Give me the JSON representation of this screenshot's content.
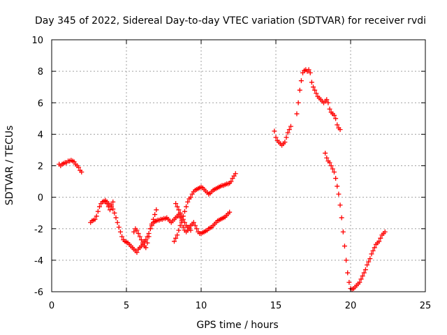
{
  "chart_data": {
    "type": "scatter",
    "title": "Day 345 of 2022, Sidereal Day-to-day VTEC variation (SDTVAR) for receiver rvdi",
    "xlabel": "GPS time / hours",
    "ylabel": "SDTVAR / TECUs",
    "xlim": [
      0,
      25
    ],
    "ylim": [
      -6,
      10
    ],
    "xticks": [
      0,
      5,
      10,
      15,
      20,
      25
    ],
    "yticks": [
      -6,
      -4,
      -2,
      0,
      2,
      4,
      6,
      8,
      10
    ],
    "grid": true,
    "marker": "plus",
    "color": "#ff0000",
    "series": [
      {
        "x": [
          0.5,
          0.6,
          0.7,
          0.8,
          0.9,
          1.0,
          1.1,
          1.2,
          1.3,
          1.4,
          1.5,
          1.6,
          1.7,
          1.8,
          1.9,
          2.0
        ],
        "y": [
          2.1,
          2.0,
          2.1,
          2.15,
          2.2,
          2.2,
          2.3,
          2.3,
          2.35,
          2.3,
          2.25,
          2.1,
          2.0,
          1.9,
          1.7,
          1.6
        ]
      },
      {
        "x": [
          2.6,
          2.7,
          2.8,
          2.9,
          3.0,
          3.1,
          3.2,
          3.3,
          3.4,
          3.5,
          3.6,
          3.7,
          3.8,
          3.9,
          4.0,
          4.1,
          4.2,
          4.3,
          4.4,
          4.5,
          4.6,
          4.7,
          4.8,
          4.9,
          5.0,
          5.1,
          5.2,
          5.3,
          5.4,
          5.5,
          5.6,
          5.7
        ],
        "y": [
          -1.6,
          -1.5,
          -1.45,
          -1.4,
          -1.2,
          -0.9,
          -0.6,
          -0.4,
          -0.3,
          -0.25,
          -0.2,
          -0.3,
          -0.4,
          -0.5,
          -0.6,
          -0.75,
          -1.0,
          -1.3,
          -1.6,
          -1.9,
          -2.2,
          -2.5,
          -2.7,
          -2.8,
          -2.85,
          -2.9,
          -3.0,
          -3.1,
          -3.2,
          -3.3,
          -3.4,
          -3.5
        ]
      },
      {
        "x": [
          3.6,
          3.7,
          3.8,
          3.9,
          4.0,
          4.1
        ],
        "y": [
          -0.3,
          -0.4,
          -0.6,
          -0.8,
          -0.5,
          -0.3
        ]
      },
      {
        "x": [
          5.5,
          5.6,
          5.7,
          5.8,
          5.9,
          6.0,
          6.1,
          6.2,
          6.3,
          6.4,
          6.5,
          6.6,
          6.7,
          6.8,
          6.9,
          7.0
        ],
        "y": [
          -2.2,
          -2.0,
          -2.1,
          -2.3,
          -2.5,
          -2.7,
          -2.9,
          -3.1,
          -3.2,
          -2.9,
          -2.5,
          -2.0,
          -1.7,
          -1.4,
          -1.1,
          -0.8
        ]
      },
      {
        "x": [
          5.8,
          5.9,
          6.0,
          6.1,
          6.2,
          6.3,
          6.4,
          6.5,
          6.6,
          6.7,
          6.8,
          6.9,
          7.0,
          7.1,
          7.2,
          7.3,
          7.4,
          7.5,
          7.6,
          7.7,
          7.8,
          7.9,
          8.0,
          8.1,
          8.2,
          8.3,
          8.4,
          8.5,
          8.6,
          8.7,
          8.8,
          8.9,
          9.0,
          9.1,
          9.2,
          9.3,
          9.4,
          9.5,
          9.6,
          9.7,
          9.8,
          9.9,
          10.0,
          10.1,
          10.2,
          10.3,
          10.4,
          10.5,
          10.6,
          10.7,
          10.8,
          10.9,
          11.0,
          11.1,
          11.2,
          11.3,
          11.4,
          11.5,
          11.6,
          11.7,
          11.8,
          11.9
        ],
        "y": [
          -3.3,
          -3.2,
          -3.1,
          -3.0,
          -2.8,
          -2.7,
          -2.5,
          -2.3,
          -2.0,
          -1.8,
          -1.6,
          -1.55,
          -1.5,
          -1.45,
          -1.45,
          -1.4,
          -1.4,
          -1.35,
          -1.35,
          -1.3,
          -1.4,
          -1.5,
          -1.6,
          -1.5,
          -1.4,
          -1.3,
          -1.2,
          -1.1,
          -1.3,
          -1.6,
          -1.9,
          -2.1,
          -2.2,
          -2.1,
          -1.9,
          -1.8,
          -1.7,
          -1.6,
          -1.8,
          -2.0,
          -2.2,
          -2.3,
          -2.3,
          -2.25,
          -2.2,
          -2.15,
          -2.1,
          -2.0,
          -1.95,
          -1.9,
          -1.8,
          -1.7,
          -1.6,
          -1.5,
          -1.45,
          -1.4,
          -1.35,
          -1.3,
          -1.25,
          -1.15,
          -1.05,
          -0.95
        ]
      },
      {
        "x": [
          8.2,
          8.3,
          8.4,
          8.5,
          8.6,
          8.7,
          8.8,
          8.9,
          9.0,
          9.1,
          9.2,
          9.3,
          9.4,
          9.5,
          9.6,
          9.7,
          9.8,
          9.9,
          10.0,
          10.1,
          10.2,
          10.3,
          10.4,
          10.5,
          10.6,
          10.7,
          10.8,
          10.9,
          11.0,
          11.1,
          11.2,
          11.3,
          11.4,
          11.5,
          11.6,
          11.7,
          11.8,
          11.9,
          12.0,
          12.1,
          12.2,
          12.3
        ],
        "y": [
          -2.8,
          -2.6,
          -2.4,
          -2.1,
          -1.8,
          -1.5,
          -1.2,
          -0.9,
          -0.6,
          -0.3,
          -0.1,
          0.0,
          0.2,
          0.35,
          0.45,
          0.5,
          0.55,
          0.6,
          0.65,
          0.6,
          0.5,
          0.4,
          0.3,
          0.2,
          0.25,
          0.35,
          0.45,
          0.5,
          0.55,
          0.6,
          0.65,
          0.7,
          0.75,
          0.75,
          0.8,
          0.85,
          0.85,
          0.9,
          1.0,
          1.2,
          1.35,
          1.5
        ]
      },
      {
        "x": [
          8.3,
          8.4,
          8.5,
          8.6,
          8.7,
          8.8,
          8.9,
          9.0,
          9.1,
          9.2,
          9.3
        ],
        "y": [
          -0.4,
          -0.6,
          -0.8,
          -1.0,
          -1.2,
          -1.4,
          -1.6,
          -1.8,
          -1.9,
          -2.0,
          -2.1
        ]
      },
      {
        "x": [
          14.9,
          15.0,
          15.1,
          15.2,
          15.3,
          15.4,
          15.5,
          15.6,
          15.7,
          15.8,
          15.9,
          16.0
        ],
        "y": [
          4.2,
          3.8,
          3.6,
          3.5,
          3.4,
          3.3,
          3.4,
          3.5,
          3.8,
          4.1,
          4.3,
          4.5
        ]
      },
      {
        "x": [
          16.4,
          16.5,
          16.6,
          16.7,
          16.8,
          16.9,
          17.0,
          17.1,
          17.2,
          17.3,
          17.4,
          17.5,
          17.6,
          17.7,
          17.8,
          17.9,
          18.0,
          18.1,
          18.2,
          18.3,
          18.4,
          18.5,
          18.6,
          18.7,
          18.8,
          18.9,
          19.0,
          19.1,
          19.2,
          19.3
        ],
        "y": [
          5.3,
          6.0,
          6.8,
          7.4,
          7.9,
          8.05,
          8.1,
          8.0,
          8.1,
          7.9,
          7.3,
          7.0,
          6.8,
          6.6,
          6.4,
          6.3,
          6.2,
          6.1,
          6.0,
          6.1,
          6.2,
          6.0,
          5.6,
          5.4,
          5.3,
          5.2,
          5.0,
          4.6,
          4.4,
          4.3
        ]
      },
      {
        "x": [
          18.3,
          18.4,
          18.5,
          18.6,
          18.7,
          18.8,
          18.9,
          19.0,
          19.1,
          19.2,
          19.3,
          19.4,
          19.5,
          19.6,
          19.7,
          19.8,
          19.9,
          20.0,
          20.1,
          20.2,
          20.3,
          20.4,
          20.5,
          20.6,
          20.7,
          20.8,
          20.9,
          21.0,
          21.1,
          21.2,
          21.3,
          21.4,
          21.5,
          21.6,
          21.7,
          21.8,
          21.9,
          22.0,
          22.1,
          22.2,
          22.3
        ],
        "y": [
          2.8,
          2.5,
          2.3,
          2.2,
          2.0,
          1.8,
          1.6,
          1.2,
          0.7,
          0.2,
          -0.5,
          -1.3,
          -2.2,
          -3.1,
          -4.0,
          -4.8,
          -5.4,
          -5.8,
          -5.85,
          -5.8,
          -5.7,
          -5.6,
          -5.5,
          -5.4,
          -5.2,
          -5.0,
          -4.8,
          -4.6,
          -4.3,
          -4.1,
          -3.9,
          -3.6,
          -3.4,
          -3.2,
          -3.0,
          -2.9,
          -2.8,
          -2.6,
          -2.4,
          -2.3,
          -2.2
        ]
      }
    ]
  }
}
